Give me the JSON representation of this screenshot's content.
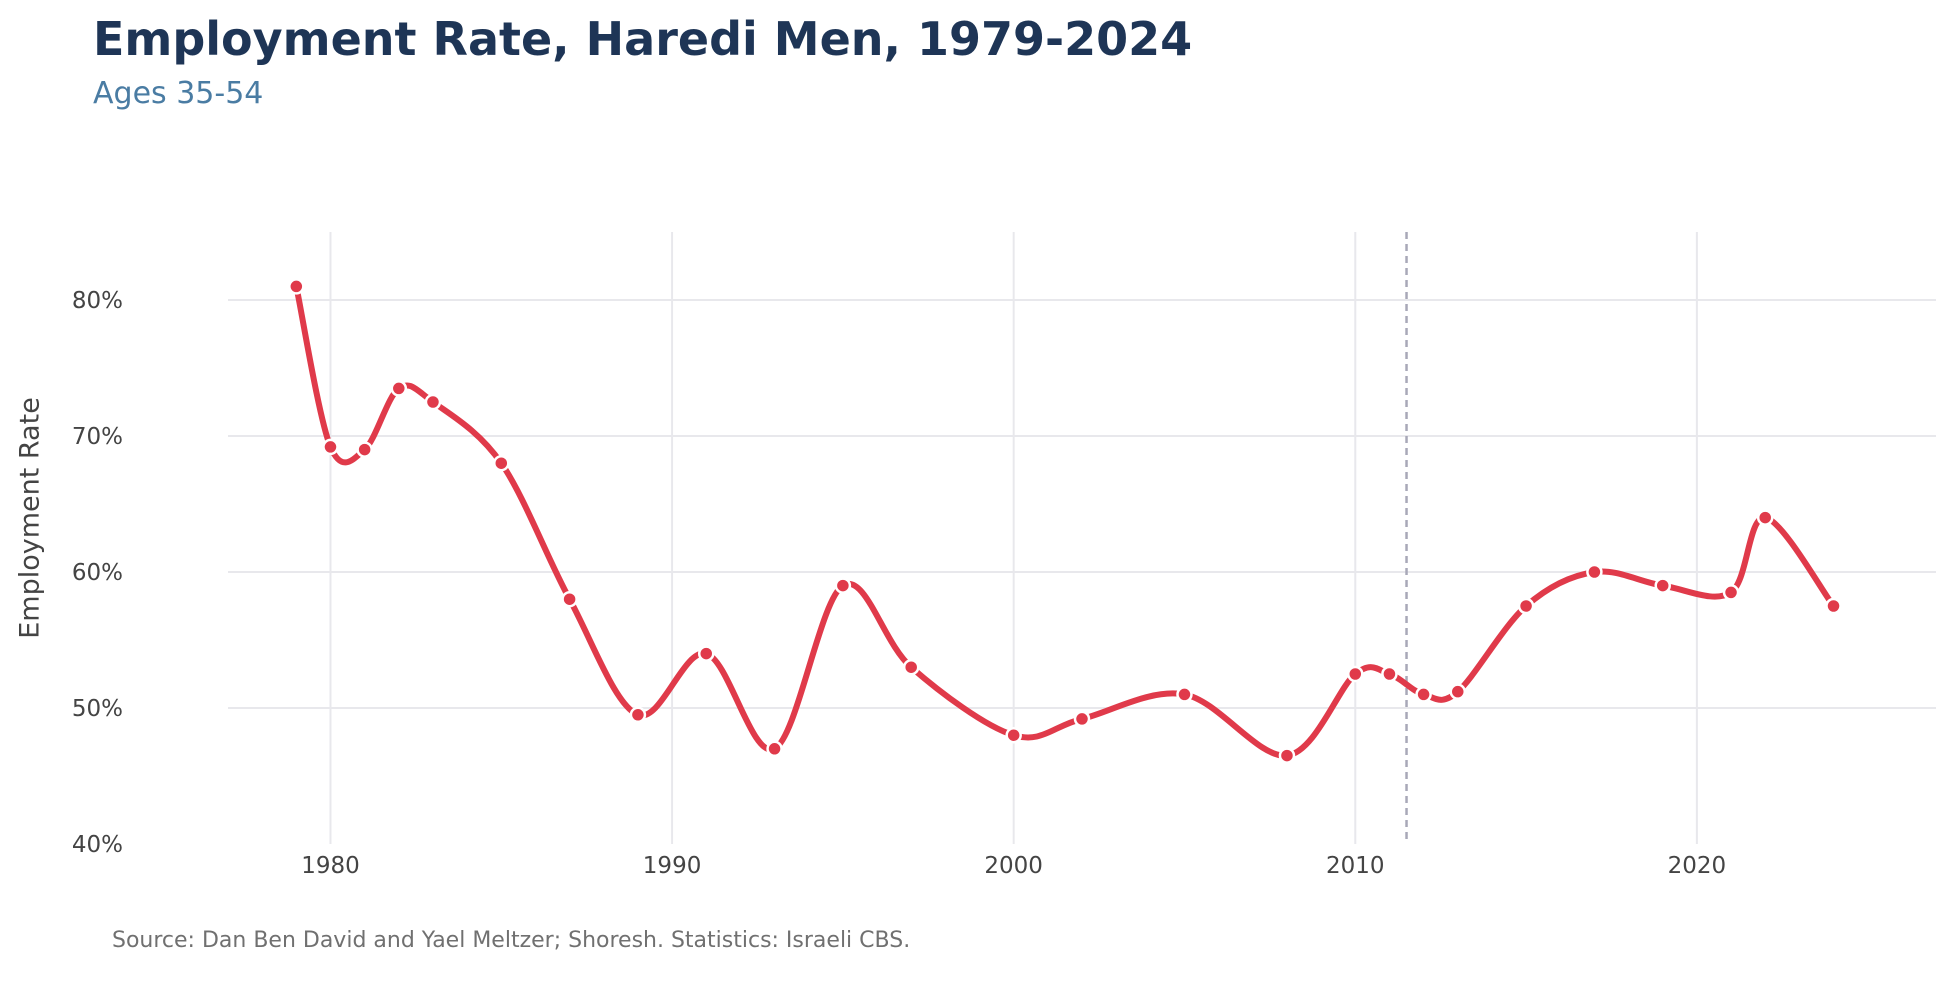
{
  "header": {
    "title": "Employment Rate, Haredi Men, 1979-2024",
    "subtitle": "Ages 35-54"
  },
  "footer": {
    "source": "Source: Dan Ben David and Yael Meltzer; Shoresh. Statistics: Israeli CBS."
  },
  "chart_data": {
    "type": "line",
    "title": "Employment Rate, Haredi Men, 1979-2024",
    "subtitle": "Ages 35-54",
    "xlabel": "",
    "ylabel": "Employment Rate",
    "xlim": [
      1977,
      2027
    ],
    "ylim": [
      40,
      85
    ],
    "x_ticks": [
      1980,
      1990,
      2000,
      2010,
      2020
    ],
    "x_tick_labels": [
      "1980",
      "1990",
      "2000",
      "2010",
      "2020"
    ],
    "y_ticks": [
      40,
      50,
      60,
      70,
      80
    ],
    "y_tick_labels": [
      "40%",
      "50%",
      "60%",
      "70%",
      "80%"
    ],
    "grid": true,
    "reference_line_x": 2011.5,
    "series": [
      {
        "x": [
          1979,
          1980,
          1981,
          1982,
          1983,
          1985,
          1987,
          1989,
          1991,
          1993,
          1995,
          1997,
          2000,
          2002,
          2005,
          2008,
          2010,
          2011,
          2012,
          2013,
          2015,
          2017,
          2019,
          2021,
          2022,
          2024
        ],
        "values": [
          81,
          69.2,
          69,
          73.5,
          72.5,
          68,
          58,
          49.5,
          54,
          47,
          59,
          53,
          48,
          49.2,
          51,
          46.5,
          52.5,
          52.5,
          51,
          51.2,
          57.5,
          60,
          59,
          58.5,
          64,
          57.5
        ]
      }
    ],
    "colors": {
      "line": "#e03a4a",
      "grid": "#e8e8ec",
      "reference_line": "#a8a8b8"
    }
  }
}
